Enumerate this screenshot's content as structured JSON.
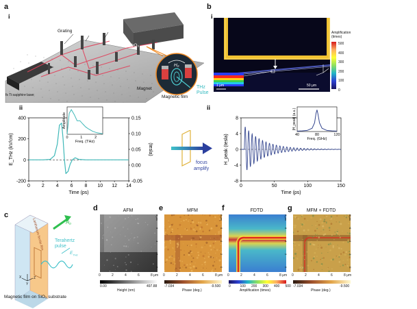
{
  "panels": {
    "a": {
      "letter": "a",
      "sub_i": "i",
      "sub_ii": "ii",
      "labels": {
        "grating": "Grating",
        "lens1": "lens",
        "lens2": "lens",
        "linbo3": "LiNbO₃",
        "laser": "fs Ti:sapphire laser",
        "magnet": "Magnet",
        "magnetic_film": "Magnetic film",
        "thz_pulse": "THz\nPulse",
        "h0": "H₀"
      }
    },
    "b": {
      "letter": "b",
      "sub_i": "i",
      "sub_ii": "ii",
      "colorbar_title": "Amplification\n(times)",
      "colorbar_ticks": [
        "500",
        "400",
        "300",
        "200",
        "100",
        "0"
      ],
      "scale_1um": "1 μm",
      "scale_50um": "50 μm"
    },
    "c": {
      "letter": "c",
      "film_label": "Lanthanum ferrite film",
      "h0": "H₀",
      "thz_label": "Terahertz\npulse",
      "e_thz": "E",
      "e_thz_sub": "THz",
      "axis_x": "X",
      "axis_y": "Y",
      "axis_z": "Z",
      "caption": "Magnetic film on SiO₂ substrate"
    },
    "d": {
      "letter": "d",
      "title": "AFM",
      "cbar_min": "0.00",
      "cbar_max": "497.88",
      "cbar_label": "Height (nm)"
    },
    "e": {
      "letter": "e",
      "title": "MFM",
      "cbar_min": "-7.034",
      "cbar_max": "-9.500",
      "cbar_label": "Phase (deg.)"
    },
    "f": {
      "letter": "f",
      "title": "FDTD",
      "cbar_ticks": [
        "0",
        "100",
        "200",
        "300",
        "400",
        "500"
      ],
      "cbar_label": "Amplification (times)"
    },
    "g": {
      "letter": "g",
      "title": "MFM + FDTD",
      "cbar_min": "-7.034",
      "cbar_max": "-9.500",
      "cbar_label": "Phase (deg.)"
    },
    "map_ticks": [
      "0",
      "2",
      "4",
      "6",
      "8 μm"
    ],
    "map_yticks": [
      "8 μm",
      "6",
      "4",
      "2",
      "0"
    ],
    "arrow": {
      "line1": "focus",
      "line2": "amplify"
    }
  },
  "chart_data": [
    {
      "type": "line",
      "panel": "a-ii",
      "xlabel": "Time (ps)",
      "ylabel": "E_THz (kV/cm)",
      "y2label": "(tesla)",
      "xlim": [
        0,
        14
      ],
      "ylim": [
        -200,
        400
      ],
      "y2lim": [
        -0.05,
        0.15
      ],
      "xticks": [
        "0",
        "2",
        "4",
        "6",
        "8",
        "10",
        "12",
        "14"
      ],
      "yticks": [
        "400",
        "200",
        "0",
        "-200"
      ],
      "y2ticks": [
        "0.15",
        "0.10",
        "0.05",
        "0.00",
        "-0.05"
      ],
      "x": [
        0,
        2,
        3,
        3.6,
        4.0,
        4.3,
        4.6,
        4.8,
        5.0,
        5.2,
        5.5,
        5.8,
        6.1,
        6.5,
        7,
        8,
        10,
        14
      ],
      "values": [
        0,
        0,
        5,
        40,
        150,
        330,
        350,
        200,
        0,
        -130,
        -110,
        -40,
        0,
        20,
        5,
        0,
        0,
        0
      ],
      "inset": {
        "type": "line",
        "xlabel": "Freq. (THz)",
        "ylabel": "Amplitude",
        "xticks": [
          "0",
          "1",
          "2"
        ],
        "x": [
          0,
          0.15,
          0.3,
          0.5,
          0.7,
          0.9,
          1.1,
          1.3,
          1.5,
          1.8,
          2.1,
          2.5
        ],
        "values": [
          0,
          0.85,
          1.0,
          0.8,
          0.55,
          0.55,
          0.42,
          0.3,
          0.22,
          0.12,
          0.06,
          0.02
        ]
      }
    },
    {
      "type": "line",
      "panel": "b-ii",
      "xlabel": "Time (ps)",
      "ylabel": "H_peak (tesla)",
      "xlim": [
        0,
        150
      ],
      "ylim": [
        -8,
        8
      ],
      "xticks": [
        "0",
        "50",
        "100",
        "150"
      ],
      "yticks": [
        "8",
        "4",
        "0",
        "-4",
        "-8"
      ],
      "decay_oscillation": {
        "start_ps": 5,
        "amplitude": 6,
        "period_ps": 5.2,
        "decay_ps": 28
      },
      "inset": {
        "type": "line",
        "xlabel": "Freq. (GHz)",
        "ylabel": "|H_peak| (a.u.)",
        "xticks": [
          "40",
          "80",
          "120"
        ],
        "x": [
          40,
          50,
          60,
          70,
          75,
          78,
          80,
          82,
          85,
          90,
          100,
          110,
          120
        ],
        "values": [
          0.02,
          0.03,
          0.05,
          0.15,
          0.4,
          0.85,
          1.0,
          0.8,
          0.4,
          0.15,
          0.05,
          0.03,
          0.02
        ]
      }
    }
  ]
}
